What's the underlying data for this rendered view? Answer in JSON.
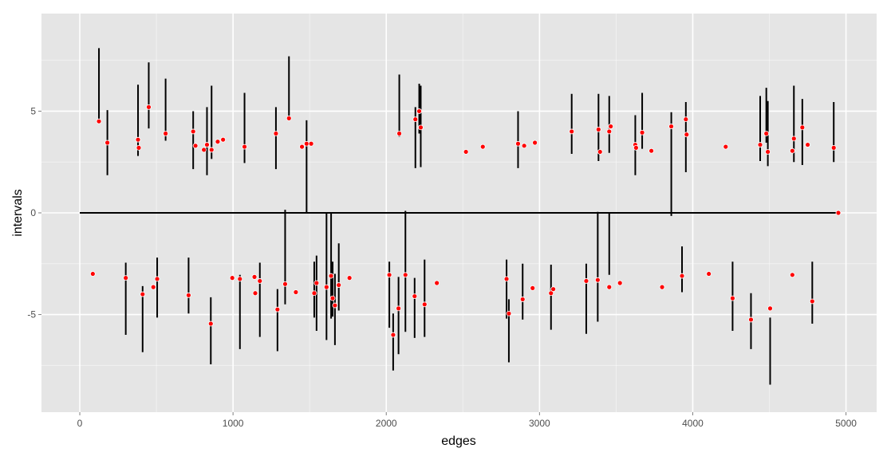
{
  "chart_data": {
    "type": "scatter",
    "xlabel": "edges",
    "ylabel": "intervals",
    "xlim": [
      -250,
      5200
    ],
    "ylim": [
      -9.8,
      9.8
    ],
    "x_ticks": [
      0,
      1000,
      2000,
      3000,
      4000,
      5000
    ],
    "y_ticks": [
      -5,
      0,
      5
    ],
    "grid": true,
    "panel_background": "#e5e5e5",
    "grid_color": "#ffffff",
    "point_color": "#ff0000",
    "interval_color": "#000000",
    "baseline": {
      "x": [
        0,
        4950
      ],
      "y": 0
    },
    "points": [
      {
        "x": 125,
        "y": 4.5,
        "lo": 4.5,
        "hi": 8.1
      },
      {
        "x": 180,
        "y": 3.45,
        "lo": 1.85,
        "hi": 5.05
      },
      {
        "x": 380,
        "y": 3.6,
        "lo": 2.8,
        "hi": 6.3
      },
      {
        "x": 385,
        "y": 3.2
      },
      {
        "x": 450,
        "y": 5.2,
        "lo": 4.15,
        "hi": 7.4
      },
      {
        "x": 560,
        "y": 3.9,
        "lo": 3.55,
        "hi": 6.6
      },
      {
        "x": 740,
        "y": 4.0,
        "lo": 2.15,
        "hi": 5.0
      },
      {
        "x": 755,
        "y": 3.3
      },
      {
        "x": 810,
        "y": 3.1
      },
      {
        "x": 830,
        "y": 3.35,
        "lo": 1.85,
        "hi": 5.2
      },
      {
        "x": 860,
        "y": 3.1,
        "lo": 2.65,
        "hi": 6.25
      },
      {
        "x": 900,
        "y": 3.5
      },
      {
        "x": 935,
        "y": 3.6
      },
      {
        "x": 1075,
        "y": 3.25,
        "lo": 2.45,
        "hi": 5.9
      },
      {
        "x": 1280,
        "y": 3.9,
        "lo": 2.15,
        "hi": 5.2
      },
      {
        "x": 1365,
        "y": 4.65,
        "lo": 4.65,
        "hi": 7.7
      },
      {
        "x": 1450,
        "y": 3.25
      },
      {
        "x": 1480,
        "y": 3.4,
        "lo": 0.0,
        "hi": 4.55
      },
      {
        "x": 1510,
        "y": 3.4
      },
      {
        "x": 2085,
        "y": 3.9,
        "lo": 3.75,
        "hi": 6.8
      },
      {
        "x": 2190,
        "y": 4.6,
        "lo": 2.2,
        "hi": 5.2
      },
      {
        "x": 2215,
        "y": 5.0,
        "lo": 3.9,
        "hi": 6.35
      },
      {
        "x": 2225,
        "y": 4.2,
        "lo": 2.25,
        "hi": 6.25
      },
      {
        "x": 2520,
        "y": 3.0
      },
      {
        "x": 2630,
        "y": 3.25
      },
      {
        "x": 2860,
        "y": 3.4,
        "lo": 2.2,
        "hi": 5.0
      },
      {
        "x": 2900,
        "y": 3.3
      },
      {
        "x": 2970,
        "y": 3.45
      },
      {
        "x": 3210,
        "y": 4.0,
        "lo": 2.9,
        "hi": 5.85
      },
      {
        "x": 3385,
        "y": 4.1,
        "lo": 2.55,
        "hi": 5.85
      },
      {
        "x": 3395,
        "y": 3.0
      },
      {
        "x": 3455,
        "y": 4.0,
        "lo": 2.95,
        "hi": 5.75
      },
      {
        "x": 3465,
        "y": 4.25
      },
      {
        "x": 3625,
        "y": 3.35,
        "lo": 1.85,
        "hi": 4.8
      },
      {
        "x": 3630,
        "y": 3.2
      },
      {
        "x": 3670,
        "y": 3.95,
        "lo": 3.15,
        "hi": 5.9
      },
      {
        "x": 3730,
        "y": 3.05
      },
      {
        "x": 3860,
        "y": 4.25,
        "lo": -0.15,
        "hi": 4.95
      },
      {
        "x": 3955,
        "y": 4.6,
        "lo": 2.0,
        "hi": 5.45
      },
      {
        "x": 3960,
        "y": 3.85
      },
      {
        "x": 4215,
        "y": 3.25
      },
      {
        "x": 4440,
        "y": 3.35,
        "lo": 2.55,
        "hi": 5.75
      },
      {
        "x": 4480,
        "y": 3.9,
        "lo": 3.45,
        "hi": 6.15
      },
      {
        "x": 4490,
        "y": 3.0,
        "lo": 2.3,
        "hi": 5.5
      },
      {
        "x": 4650,
        "y": 3.05
      },
      {
        "x": 4660,
        "y": 3.65,
        "lo": 2.5,
        "hi": 6.25
      },
      {
        "x": 4715,
        "y": 4.2,
        "lo": 2.35,
        "hi": 5.6
      },
      {
        "x": 4750,
        "y": 3.35
      },
      {
        "x": 4920,
        "y": 3.2,
        "lo": 2.5,
        "hi": 5.45
      },
      {
        "x": 4950,
        "y": 0.0
      },
      {
        "x": 85,
        "y": -3.0
      },
      {
        "x": 300,
        "y": -3.2,
        "lo": -6.0,
        "hi": -2.45
      },
      {
        "x": 410,
        "y": -4.0,
        "lo": -6.85,
        "hi": -3.6
      },
      {
        "x": 480,
        "y": -3.65
      },
      {
        "x": 505,
        "y": -3.25,
        "lo": -5.15,
        "hi": -2.2
      },
      {
        "x": 710,
        "y": -4.05,
        "lo": -4.95,
        "hi": -2.2
      },
      {
        "x": 855,
        "y": -5.45,
        "lo": -7.45,
        "hi": -4.15
      },
      {
        "x": 995,
        "y": -3.2
      },
      {
        "x": 1045,
        "y": -3.25,
        "lo": -6.7,
        "hi": -3.05
      },
      {
        "x": 1140,
        "y": -3.15
      },
      {
        "x": 1145,
        "y": -3.95
      },
      {
        "x": 1175,
        "y": -3.35,
        "lo": -6.1,
        "hi": -2.45
      },
      {
        "x": 1290,
        "y": -4.75,
        "lo": -6.8,
        "hi": -3.75
      },
      {
        "x": 1340,
        "y": -3.5,
        "lo": -4.5,
        "hi": 0.15
      },
      {
        "x": 1410,
        "y": -3.9
      },
      {
        "x": 1530,
        "y": -3.95,
        "lo": -5.15,
        "hi": -2.4
      },
      {
        "x": 1545,
        "y": -3.45,
        "lo": -5.8,
        "hi": -2.1
      },
      {
        "x": 1610,
        "y": -3.65,
        "lo": -6.25,
        "hi": 0.0
      },
      {
        "x": 1640,
        "y": -3.1,
        "lo": -5.2,
        "hi": 0.0
      },
      {
        "x": 1650,
        "y": -4.2,
        "lo": -5.1,
        "hi": -2.4
      },
      {
        "x": 1665,
        "y": -4.55,
        "lo": -6.5,
        "hi": -3.0
      },
      {
        "x": 1690,
        "y": -3.55,
        "lo": -4.8,
        "hi": -1.5
      },
      {
        "x": 1760,
        "y": -3.2
      },
      {
        "x": 2020,
        "y": -3.05,
        "lo": -5.65,
        "hi": -2.4
      },
      {
        "x": 2045,
        "y": -6.0,
        "lo": -7.75,
        "hi": -4.95
      },
      {
        "x": 2080,
        "y": -4.7,
        "lo": -6.95,
        "hi": -3.15
      },
      {
        "x": 2125,
        "y": -3.05,
        "lo": -5.85,
        "hi": 0.1
      },
      {
        "x": 2185,
        "y": -4.1,
        "lo": -6.15,
        "hi": -3.2
      },
      {
        "x": 2250,
        "y": -4.5,
        "lo": -6.1,
        "hi": -2.3
      },
      {
        "x": 2330,
        "y": -3.45
      },
      {
        "x": 2785,
        "y": -3.25,
        "lo": -5.2,
        "hi": -2.3
      },
      {
        "x": 2800,
        "y": -4.95,
        "lo": -7.35,
        "hi": -4.25
      },
      {
        "x": 2890,
        "y": -4.25,
        "lo": -5.25,
        "hi": -2.5
      },
      {
        "x": 2955,
        "y": -3.7
      },
      {
        "x": 3075,
        "y": -3.95,
        "lo": -5.75,
        "hi": -2.55
      },
      {
        "x": 3090,
        "y": -3.75
      },
      {
        "x": 3305,
        "y": -3.35,
        "lo": -5.95,
        "hi": -2.5
      },
      {
        "x": 3380,
        "y": -3.3,
        "lo": -5.35,
        "hi": 0.05
      },
      {
        "x": 3455,
        "y": -3.65,
        "lo": -3.05,
        "hi": 0.0
      },
      {
        "x": 3525,
        "y": -3.45
      },
      {
        "x": 3800,
        "y": -3.65
      },
      {
        "x": 3930,
        "y": -3.1,
        "lo": -3.9,
        "hi": -1.65
      },
      {
        "x": 4105,
        "y": -3.0
      },
      {
        "x": 4260,
        "y": -4.2,
        "lo": -5.8,
        "hi": -2.4
      },
      {
        "x": 4380,
        "y": -5.25,
        "lo": -6.7,
        "hi": -3.95
      },
      {
        "x": 4505,
        "y": -4.7,
        "lo": -8.45,
        "hi": -5.15
      },
      {
        "x": 4650,
        "y": -3.05
      },
      {
        "x": 4780,
        "y": -4.35,
        "lo": -5.45,
        "hi": -2.4
      }
    ]
  }
}
